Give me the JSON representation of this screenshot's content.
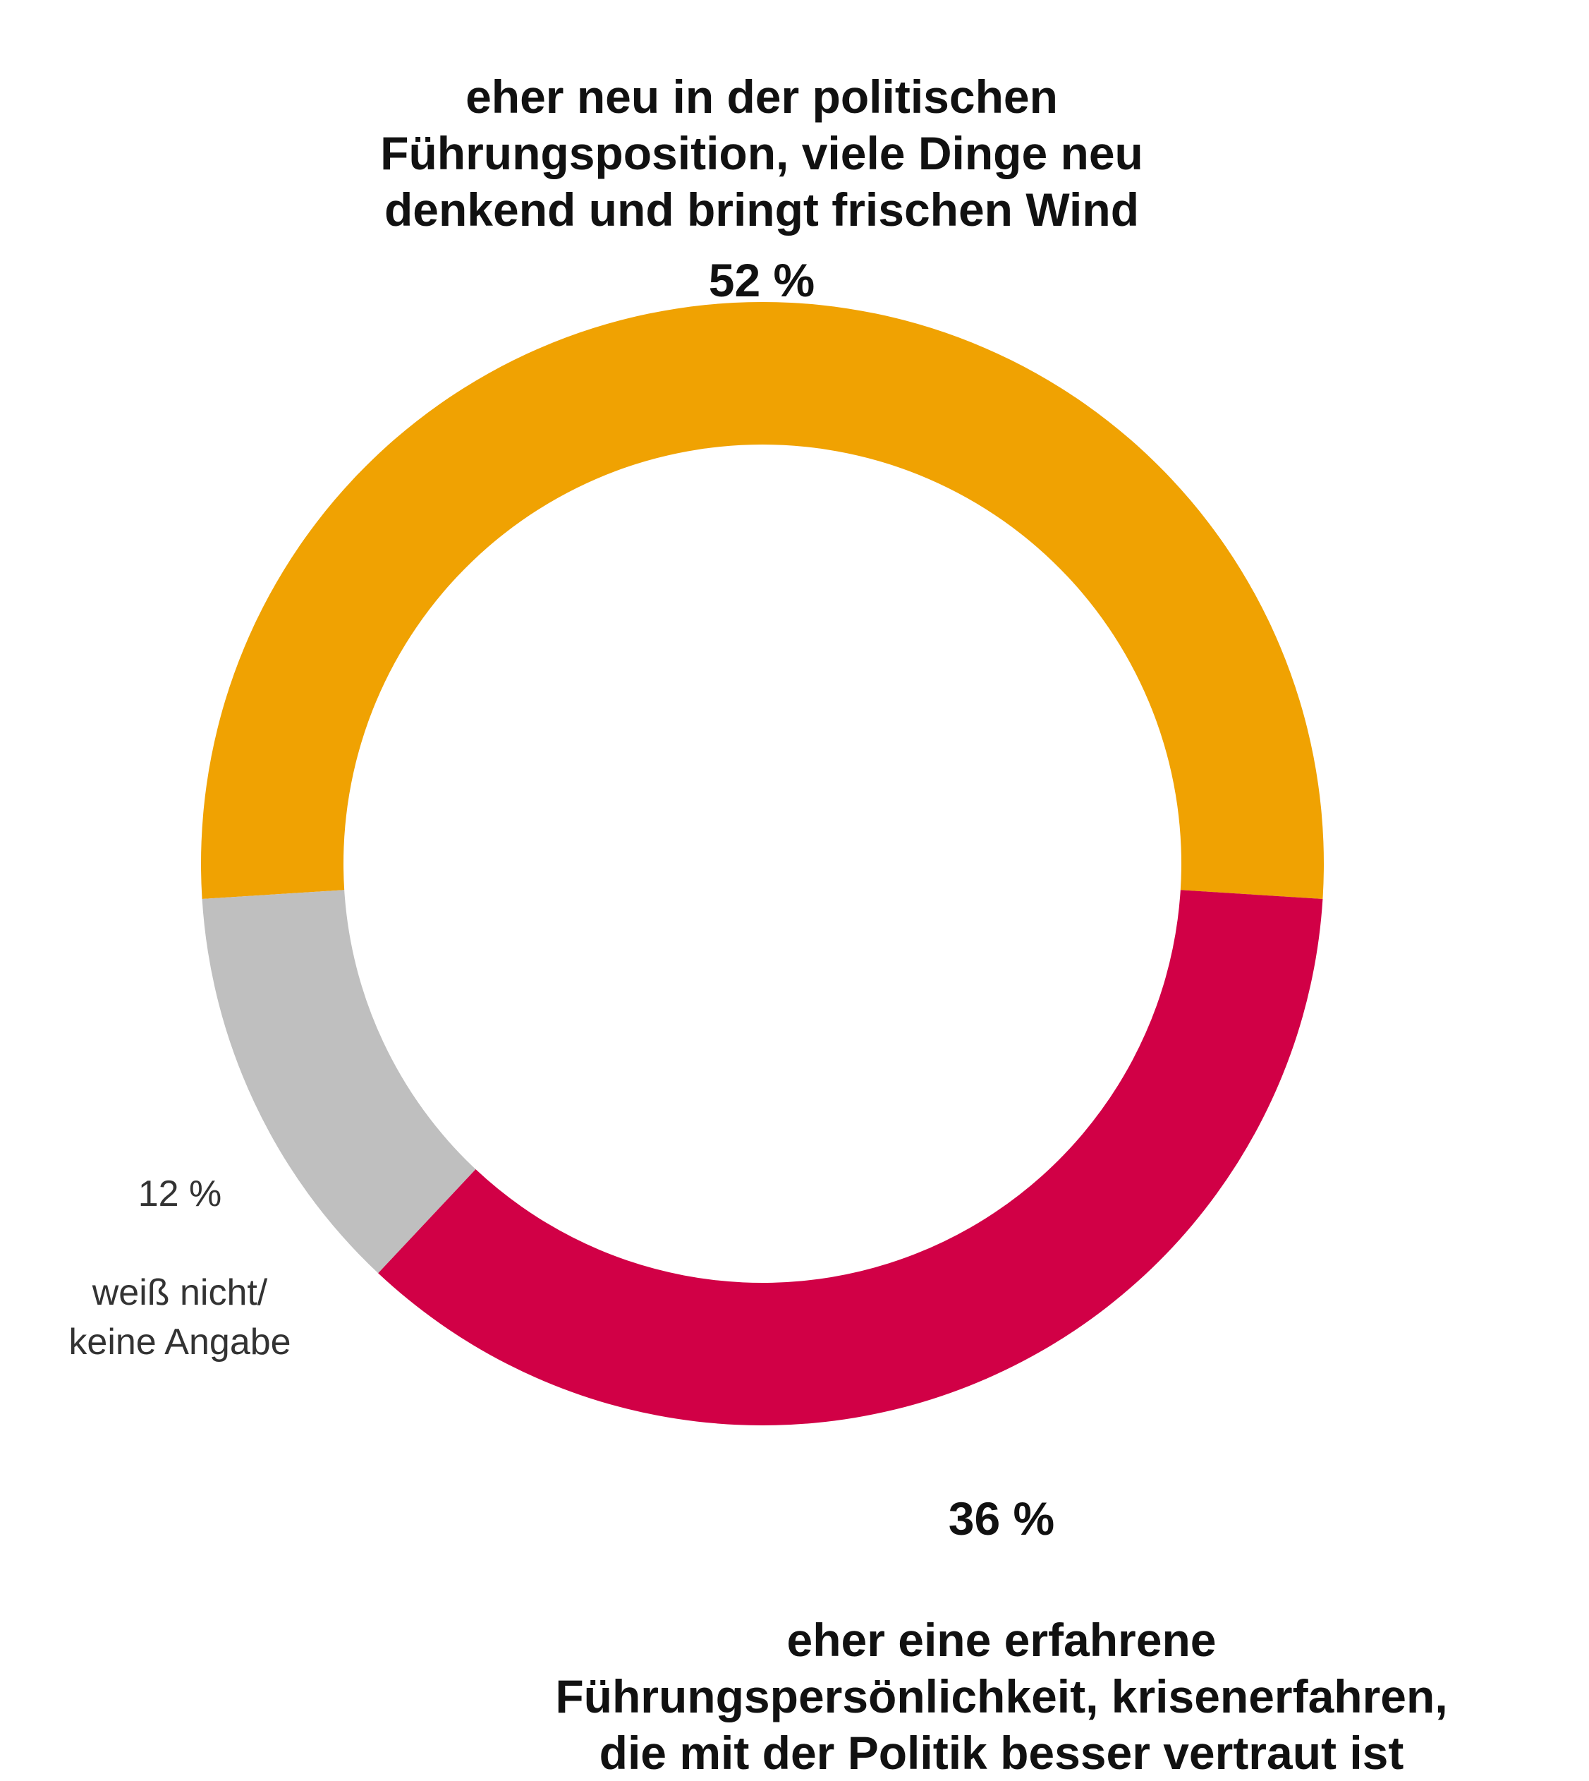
{
  "chart_data": {
    "type": "donut",
    "categories": [
      "eher neu in der politischen\nFührungsposition, viele Dinge neu\ndenkend und bringt frischen Wind",
      "eher eine erfahrene\nFührungspersönlichkeit, krisenerfahren,\ndie mit der Politik besser vertraut ist",
      "weiß nicht/\nkeine Angabe"
    ],
    "values": [
      52,
      36,
      12
    ],
    "value_labels": [
      "52 %",
      "36 %",
      "12 %"
    ],
    "colors": [
      "#f0a202",
      "#d10046",
      "#bfbfbf"
    ]
  }
}
